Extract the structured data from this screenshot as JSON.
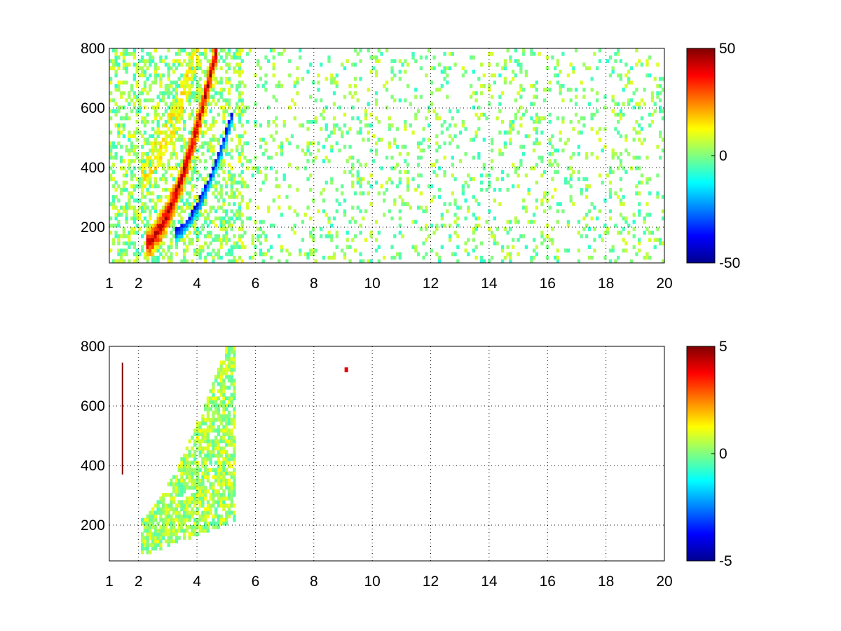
{
  "chart_data": [
    {
      "type": "heatmap",
      "title": "",
      "xlabel": "",
      "ylabel": "",
      "xlim": [
        1,
        20
      ],
      "ylim": [
        80,
        800
      ],
      "xticks": [
        1,
        2,
        4,
        6,
        8,
        10,
        12,
        14,
        16,
        18,
        20
      ],
      "yticks": [
        200,
        400,
        600,
        800
      ],
      "grid": true,
      "colormap": "jet",
      "clim": [
        -50,
        50
      ],
      "colorbar_ticks": [
        50,
        0,
        -50
      ],
      "features": [
        {
          "name": "positive ridge",
          "x_start": 2.2,
          "y_start": 140,
          "x_end": 4.6,
          "y_end": 780,
          "value": 45
        },
        {
          "name": "negative ridge",
          "x_start": 3.2,
          "y_start": 190,
          "x_end": 5.2,
          "y_end": 600,
          "value": -40
        },
        {
          "name": "upper positive band",
          "x_start": 2.0,
          "y_start": 380,
          "x_end": 4.0,
          "y_end": 800,
          "value": 12
        }
      ]
    },
    {
      "type": "heatmap",
      "title": "",
      "xlabel": "",
      "ylabel": "",
      "xlim": [
        1,
        20
      ],
      "ylim": [
        80,
        800
      ],
      "xticks": [
        1,
        2,
        4,
        6,
        8,
        10,
        12,
        14,
        16,
        18,
        20
      ],
      "yticks": [
        200,
        400,
        600,
        800
      ],
      "grid": true,
      "colormap": "jet",
      "clim": [
        -5,
        5
      ],
      "colorbar_ticks": [
        5,
        0,
        -5
      ],
      "features": [
        {
          "name": "main band",
          "x_start": 2.0,
          "y_start": 110,
          "x_end": 5.3,
          "y_end": 790,
          "value": 0.3
        },
        {
          "name": "vertical streak",
          "x": 1.45,
          "y_start": 370,
          "y_end": 745,
          "value": 5
        },
        {
          "name": "small mark",
          "x": 9.1,
          "y": 720,
          "value": 4
        }
      ]
    }
  ]
}
